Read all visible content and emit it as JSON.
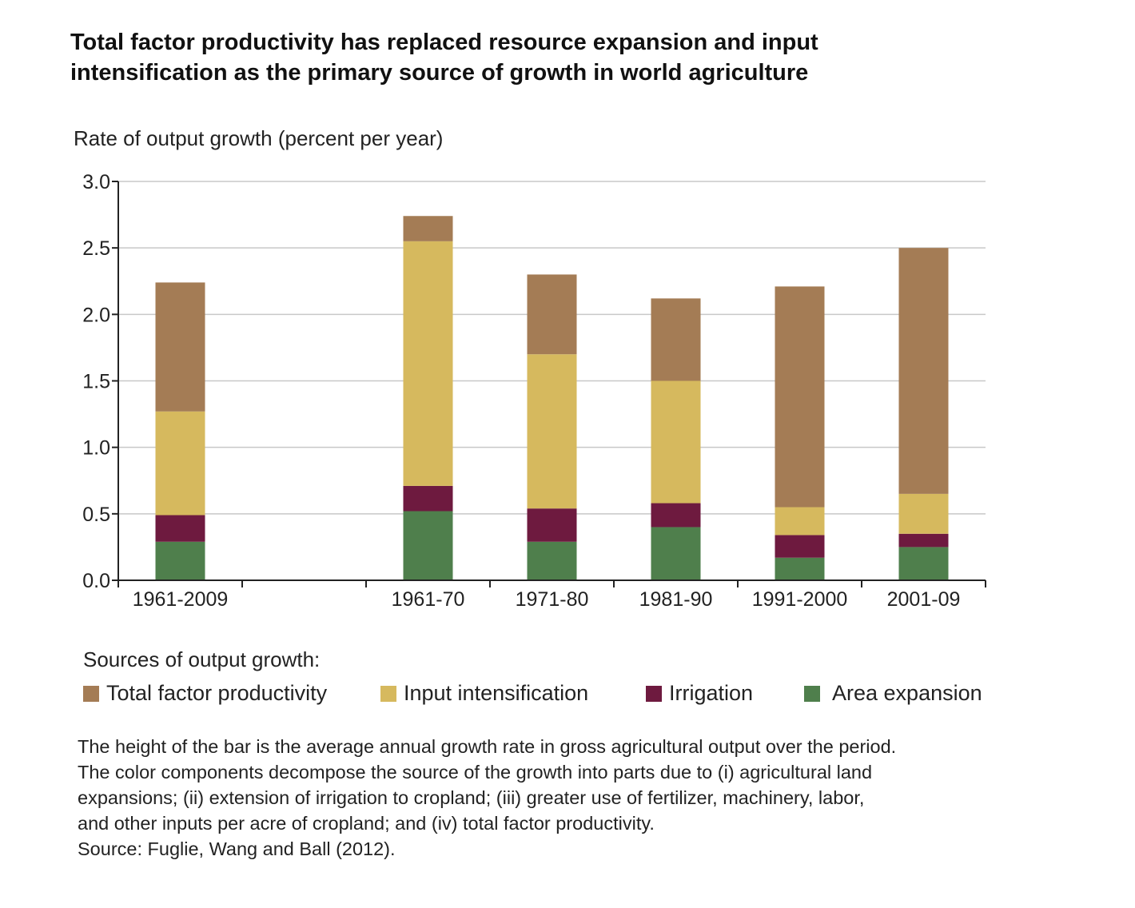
{
  "title_lines": [
    "Total factor productivity has replaced resource expansion and input",
    "intensification as the primary source of growth in world agriculture"
  ],
  "legend_heading": "Sources of output growth:",
  "legend": [
    {
      "label": "Total factor productivity",
      "color": "#a47c55"
    },
    {
      "label": "Input intensification",
      "color": "#d6b95e"
    },
    {
      "label": "Irrigation",
      "color": "#6e1a3f"
    },
    {
      "label": "Area expansion",
      "color": "#4f7f4c"
    }
  ],
  "notes": [
    "The height of the bar is the average annual growth rate in gross agricultural output over the period.",
    "The color components decompose the source of the growth into parts due to (i) agricultural land",
    "expansions; (ii) extension of irrigation to cropland; (iii) greater use of fertilizer, machinery, labor,",
    "and other inputs per acre of cropland; and (iv) total factor productivity.",
    "Source: Fuglie, Wang and Ball (2012)."
  ],
  "chart_data": {
    "type": "bar",
    "stacked": true,
    "title": "Total factor productivity has replaced resource expansion and input intensification as the primary source of growth in world agriculture",
    "ylabel": "Rate of output growth (percent per year)",
    "xlabel": "",
    "ylim": [
      0,
      3.0
    ],
    "yticks": [
      "0.0",
      "0.5",
      "1.0",
      "1.5",
      "2.0",
      "2.5",
      "3.0"
    ],
    "grid": true,
    "categories": [
      "1961-2009",
      "",
      "1961-70",
      "1971-80",
      "1981-90",
      "1991-2000",
      "2001-09"
    ],
    "series": [
      {
        "name": "Area expansion",
        "color": "#4f7f4c",
        "values": [
          0.29,
          null,
          0.52,
          0.29,
          0.4,
          0.17,
          0.25
        ]
      },
      {
        "name": "Irrigation",
        "color": "#6e1a3f",
        "values": [
          0.2,
          null,
          0.19,
          0.25,
          0.18,
          0.17,
          0.1
        ]
      },
      {
        "name": "Input intensification",
        "color": "#d6b95e",
        "values": [
          0.78,
          null,
          1.84,
          1.16,
          0.92,
          0.21,
          0.3
        ]
      },
      {
        "name": "Total factor productivity",
        "color": "#a47c55",
        "values": [
          0.97,
          null,
          0.19,
          0.6,
          0.62,
          1.66,
          1.85
        ]
      }
    ]
  }
}
